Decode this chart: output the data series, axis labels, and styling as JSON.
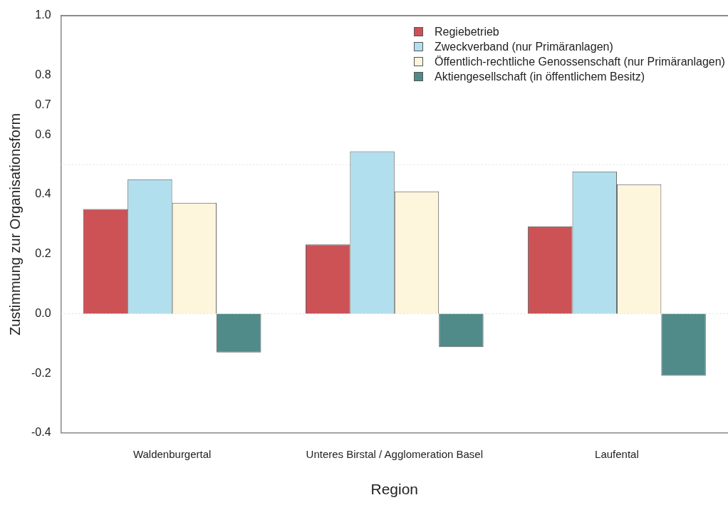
{
  "chart_data": {
    "type": "bar",
    "xlabel": "Region",
    "ylabel": "Zustimmung zur Organisationsform",
    "categories": [
      "Waldenburgertal",
      "Unteres Birstal / Agglomeration Basel",
      "Laufental"
    ],
    "series": [
      {
        "name": "Regiebetrieb",
        "color": "#cc5256",
        "values": [
          0.351,
          0.232,
          0.293
        ]
      },
      {
        "name": "Zweckverband (nur Primäranlagen)",
        "color": "#b2dfed",
        "values": [
          0.451,
          0.545,
          0.477
        ]
      },
      {
        "name": "Öffentlich-rechtliche Genossenschaft (nur Primäranlagen)",
        "color": "#fdf6dc",
        "values": [
          0.372,
          0.41,
          0.434
        ]
      },
      {
        "name": "Aktiengesellschaft (in öffentlichem Besitz)",
        "color": "#508a89",
        "values": [
          -0.13,
          -0.112,
          -0.208
        ]
      }
    ],
    "ylim": [
      -0.4,
      1.0
    ],
    "yticks": [
      -0.4,
      -0.2,
      {
        "value": 0,
        "label": "0.0"
      },
      0.2,
      0.4,
      0.6,
      0.7,
      0.8,
      {
        "value": 1,
        "label": "1.0"
      }
    ],
    "ref_lines": [
      {
        "axis": "y",
        "value": 0.5,
        "color": "#dddddd",
        "line_style": "dotted"
      },
      {
        "axis": "y",
        "value": 0.0,
        "color": "#dddddd",
        "line_style": "dotted"
      }
    ],
    "grid": false,
    "legend": "top right"
  }
}
